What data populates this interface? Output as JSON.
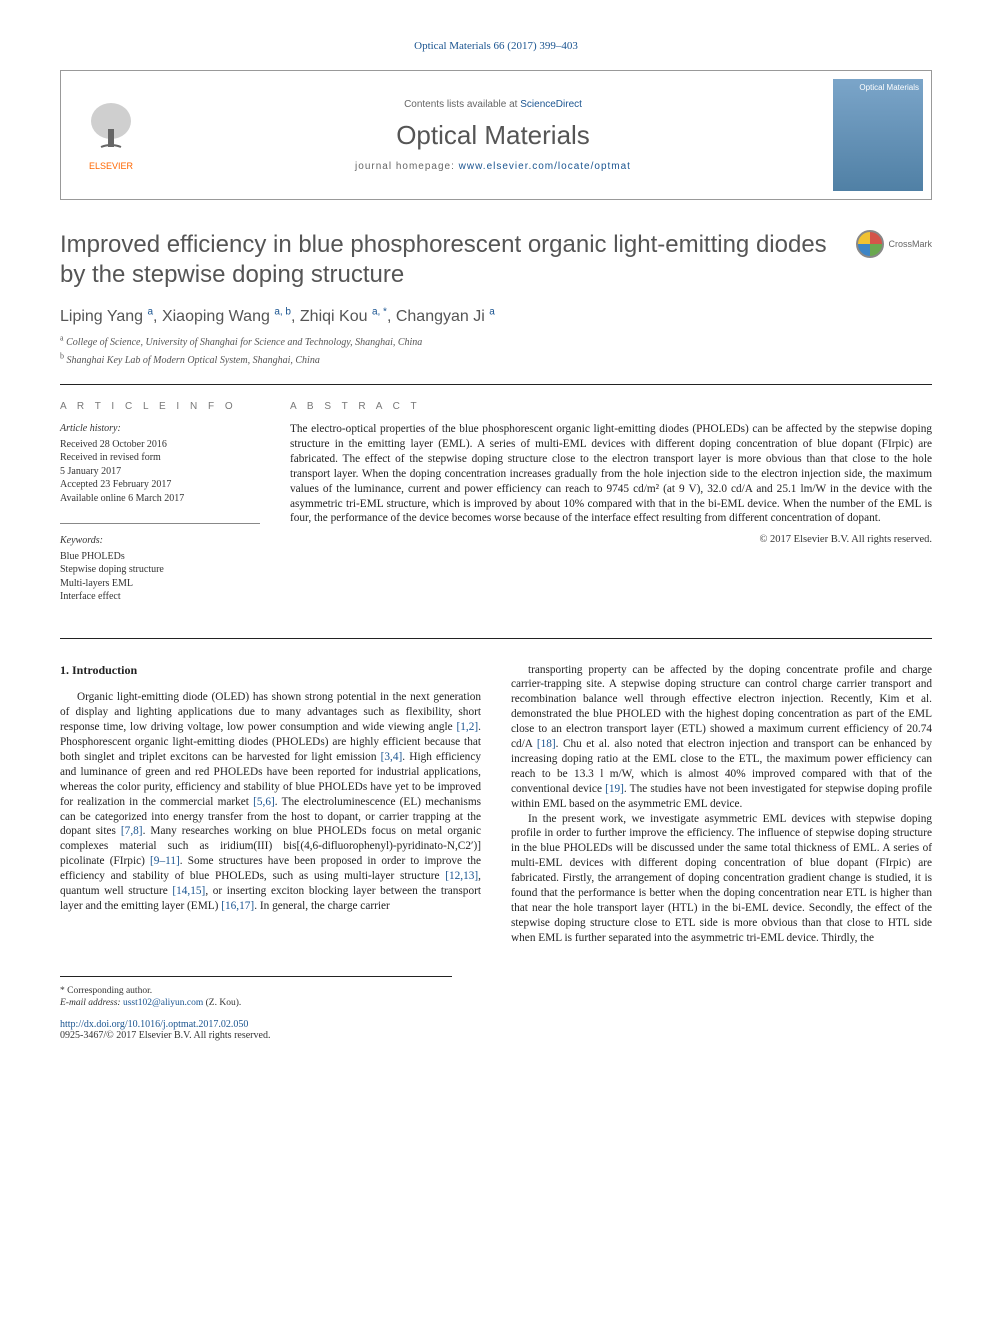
{
  "citation": "Optical Materials 66 (2017) 399–403",
  "header": {
    "contents_prefix": "Contents lists available at ",
    "contents_link": "ScienceDirect",
    "journal": "Optical Materials",
    "homepage_prefix": "journal homepage: ",
    "homepage_url": "www.elsevier.com/locate/optmat",
    "publisher": "ELSEVIER",
    "cover_label": "Optical Materials"
  },
  "crossmark": "CrossMark",
  "title": "Improved efficiency in blue phosphorescent organic light-emitting diodes by the stepwise doping structure",
  "authors_html": "Liping Yang <sup>a</sup>, Xiaoping Wang <sup>a, b</sup>, Zhiqi Kou <sup>a, *</sup>, Changyan Ji <sup>a</sup>",
  "affiliations": {
    "a": "College of Science, University of Shanghai for Science and Technology, Shanghai, China",
    "b": "Shanghai Key Lab of Modern Optical System, Shanghai, China"
  },
  "info": {
    "head": "A R T I C L E  I N F O",
    "history_label": "Article history:",
    "history": "Received 28 October 2016\nReceived in revised form\n5 January 2017\nAccepted 23 February 2017\nAvailable online 6 March 2017",
    "keywords_label": "Keywords:",
    "keywords": "Blue PHOLEDs\nStepwise doping structure\nMulti-layers EML\nInterface effect"
  },
  "abstract": {
    "head": "A B S T R A C T",
    "text": "The electro-optical properties of the blue phosphorescent organic light-emitting diodes (PHOLEDs) can be affected by the stepwise doping structure in the emitting layer (EML). A series of multi-EML devices with different doping concentration of blue dopant (FIrpic) are fabricated. The effect of the stepwise doping structure close to the electron transport layer is more obvious than that close to the hole transport layer. When the doping concentration increases gradually from the hole injection side to the electron injection side, the maximum values of the luminance, current and power efficiency can reach to 9745 cd/m² (at 9 V), 32.0 cd/A and 25.1 lm/W in the device with the asymmetric tri-EML structure, which is improved by about 10% compared with that in the bi-EML device. When the number of the EML is four, the performance of the device becomes worse because of the interface effect resulting from different concentration of dopant.",
    "copyright": "© 2017 Elsevier B.V. All rights reserved."
  },
  "body": {
    "section_num": "1. Introduction",
    "col1_p1": "Organic light-emitting diode (OLED) has shown strong potential in the next generation of display and lighting applications due to many advantages such as flexibility, short response time, low driving voltage, low power consumption and wide viewing angle [1,2]. Phosphorescent organic light-emitting diodes (PHOLEDs) are highly efficient because that both singlet and triplet excitons can be harvested for light emission [3,4]. High efficiency and luminance of green and red PHOLEDs have been reported for industrial applications, whereas the color purity, efficiency and stability of blue PHOLEDs have yet to be improved for realization in the commercial market [5,6]. The electroluminescence (EL) mechanisms can be categorized into energy transfer from the host to dopant, or carrier trapping at the dopant sites [7,8]. Many researches working on blue PHOLEDs focus on metal organic complexes material such as iridium(III) bis[(4,6-difluorophenyl)-pyridinato-N,C2′)] picolinate (FIrpic) [9–11]. Some structures have been proposed in order to improve the efficiency and stability of blue PHOLEDs, such as using multi-layer structure [12,13], quantum well structure [14,15], or inserting exciton blocking layer between the transport layer and the emitting layer (EML) [16,17]. In general, the charge carrier",
    "col2_p1": "transporting property can be affected by the doping concentrate profile and charge carrier-trapping site. A stepwise doping structure can control charge carrier transport and recombination balance well through effective electron injection. Recently, Kim et al. demonstrated the blue PHOLED with the highest doping concentration as part of the EML close to an electron transport layer (ETL) showed a maximum current efficiency of 20.74 cd/A [18]. Chu et al. also noted that electron injection and transport can be enhanced by increasing doping ratio at the EML close to the ETL, the maximum power efficiency can reach to be 13.3 l m/W, which is almost 40% improved compared with that of the conventional device [19]. The studies have not been investigated for stepwise doping profile within EML based on the asymmetric EML device.",
    "col2_p2": "In the present work, we investigate asymmetric EML devices with stepwise doping profile in order to further improve the efficiency. The influence of stepwise doping structure in the blue PHOLEDs will be discussed under the same total thickness of EML. A series of multi-EML devices with different doping concentration of blue dopant (FIrpic) are fabricated. Firstly, the arrangement of doping concentration gradient change is studied, it is found that the performance is better when the doping concentration near ETL is higher than that near the hole transport layer (HTL) in the bi-EML device. Secondly, the effect of the stepwise doping structure close to ETL side is more obvious than that close to HTL side when EML is further separated into the asymmetric tri-EML device. Thirdly, the"
  },
  "footer": {
    "corr_label": "* Corresponding author.",
    "email_label": "E-mail address: ",
    "email": "usst102@aliyun.com",
    "email_who": " (Z. Kou).",
    "doi": "http://dx.doi.org/10.1016/j.optmat.2017.02.050",
    "issn_copy": "0925-3467/© 2017 Elsevier B.V. All rights reserved."
  }
}
